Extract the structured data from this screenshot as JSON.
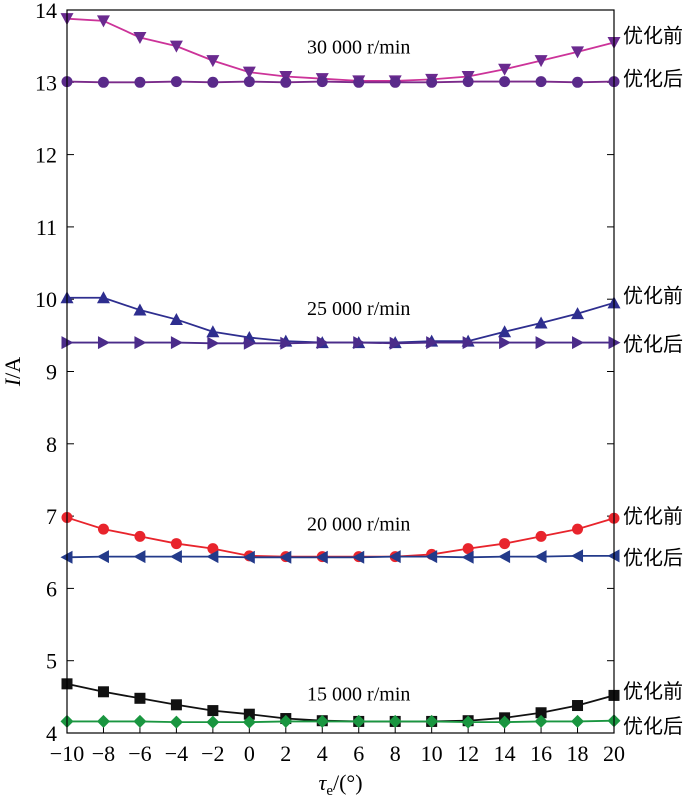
{
  "chart_data": {
    "type": "line",
    "xlabel_symbol": "τ",
    "xlabel_sub": "e",
    "xlabel_unit": "/(°)",
    "ylabel_symbol": "I",
    "ylabel_unit": "/A",
    "xlim": [
      -10,
      20
    ],
    "ylim": [
      4,
      14
    ],
    "x_ticks": [
      -10,
      -8,
      -6,
      -4,
      -2,
      0,
      2,
      4,
      6,
      8,
      10,
      12,
      14,
      16,
      18,
      20
    ],
    "y_ticks": [
      4,
      5,
      6,
      7,
      8,
      9,
      10,
      11,
      12,
      13,
      14
    ],
    "x": [
      -10,
      -8,
      -6,
      -4,
      -2,
      0,
      2,
      4,
      6,
      8,
      10,
      12,
      14,
      16,
      18,
      20
    ],
    "series": [
      {
        "speed": "30 000 r/min",
        "state": "优化前",
        "color": "#cc3399",
        "marker_color": "#6a2a8f",
        "marker": "triangle-down",
        "values": [
          13.88,
          13.85,
          13.62,
          13.5,
          13.3,
          13.14,
          13.08,
          13.05,
          13.02,
          13.02,
          13.04,
          13.08,
          13.18,
          13.3,
          13.42,
          13.55
        ]
      },
      {
        "speed": "30 000 r/min",
        "state": "优化后",
        "color": "#7a2a8a",
        "marker_color": "#5a2a8a",
        "marker": "circle",
        "values": [
          13.01,
          13.0,
          13.0,
          13.01,
          13.0,
          13.01,
          13.0,
          13.01,
          13.0,
          13.0,
          13.0,
          13.01,
          13.01,
          13.01,
          13.0,
          13.01
        ]
      },
      {
        "speed": "25 000 r/min",
        "state": "优化前",
        "color": "#2e2e8f",
        "marker_color": "#2e2e8f",
        "marker": "triangle-up",
        "values": [
          10.02,
          10.02,
          9.85,
          9.72,
          9.55,
          9.47,
          9.42,
          9.4,
          9.4,
          9.4,
          9.42,
          9.42,
          9.55,
          9.67,
          9.8,
          9.95
        ]
      },
      {
        "speed": "25 000 r/min",
        "state": "优化后",
        "color": "#4b2c8a",
        "marker_color": "#4b2c8a",
        "marker": "triangle-right",
        "values": [
          9.4,
          9.4,
          9.4,
          9.4,
          9.39,
          9.39,
          9.39,
          9.4,
          9.4,
          9.39,
          9.4,
          9.4,
          9.4,
          9.4,
          9.4,
          9.4
        ]
      },
      {
        "speed": "20 000 r/min",
        "state": "优化前",
        "color": "#e8242c",
        "marker_color": "#e8242c",
        "marker": "circle",
        "values": [
          6.98,
          6.82,
          6.72,
          6.62,
          6.55,
          6.45,
          6.44,
          6.44,
          6.44,
          6.44,
          6.47,
          6.55,
          6.62,
          6.72,
          6.82,
          6.97
        ]
      },
      {
        "speed": "20 000 r/min",
        "state": "优化后",
        "color": "#233a8a",
        "marker_color": "#233a8a",
        "marker": "triangle-left",
        "values": [
          6.43,
          6.44,
          6.44,
          6.44,
          6.44,
          6.43,
          6.43,
          6.43,
          6.43,
          6.44,
          6.44,
          6.43,
          6.44,
          6.44,
          6.45,
          6.45
        ]
      },
      {
        "speed": "15 000 r/min",
        "state": "优化前",
        "color": "#111111",
        "marker_color": "#111111",
        "marker": "square",
        "values": [
          4.68,
          4.57,
          4.48,
          4.39,
          4.31,
          4.26,
          4.2,
          4.17,
          4.16,
          4.16,
          4.16,
          4.17,
          4.21,
          4.28,
          4.38,
          4.52
        ]
      },
      {
        "speed": "15 000 r/min",
        "state": "优化后",
        "color": "#1a9640",
        "marker_color": "#1a9640",
        "marker": "diamond",
        "values": [
          4.16,
          4.16,
          4.16,
          4.15,
          4.15,
          4.15,
          4.16,
          4.16,
          4.16,
          4.16,
          4.16,
          4.15,
          4.15,
          4.16,
          4.16,
          4.17
        ]
      }
    ],
    "speed_labels": [
      {
        "text": "30 000 r/min",
        "x": 6,
        "y": 13.4
      },
      {
        "text": "25 000 r/min",
        "x": 6,
        "y": 9.78
      },
      {
        "text": "20 000 r/min",
        "x": 6,
        "y": 6.8
      },
      {
        "text": "15 000 r/min",
        "x": 6,
        "y": 4.45
      }
    ],
    "right_labels": [
      {
        "text": "优化前",
        "y": 13.65
      },
      {
        "text": "优化后",
        "y": 13.05
      },
      {
        "text": "优化前",
        "y": 10.05
      },
      {
        "text": "优化后",
        "y": 9.38
      },
      {
        "text": "优化前",
        "y": 7.0
      },
      {
        "text": "优化后",
        "y": 6.43
      },
      {
        "text": "优化前",
        "y": 4.58
      },
      {
        "text": "优化后",
        "y": 4.1
      }
    ]
  }
}
